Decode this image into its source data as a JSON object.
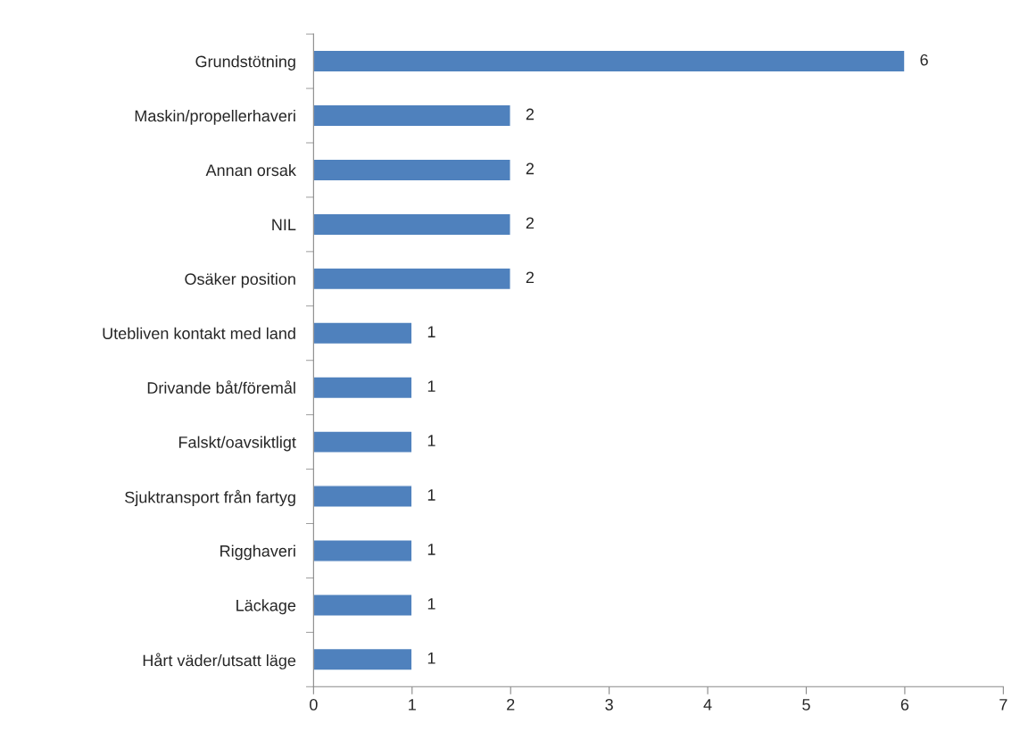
{
  "chart_data": {
    "type": "bar",
    "orientation": "horizontal",
    "categories": [
      "Grundstötning",
      "Maskin/propellerhaveri",
      "Annan orsak",
      "NIL",
      "Osäker position",
      "Utebliven kontakt med land",
      "Drivande båt/föremål",
      "Falskt/oavsiktligt",
      "Sjuktransport från fartyg",
      "Rigghaveri",
      "Läckage",
      "Hårt väder/utsatt läge"
    ],
    "values": [
      6,
      2,
      2,
      2,
      2,
      1,
      1,
      1,
      1,
      1,
      1,
      1
    ],
    "color": "#4f81bd",
    "xlim": [
      0,
      7
    ],
    "xticks": [
      0,
      1,
      2,
      3,
      4,
      5,
      6,
      7
    ],
    "data_labels": true,
    "grid": false,
    "legend": false
  }
}
